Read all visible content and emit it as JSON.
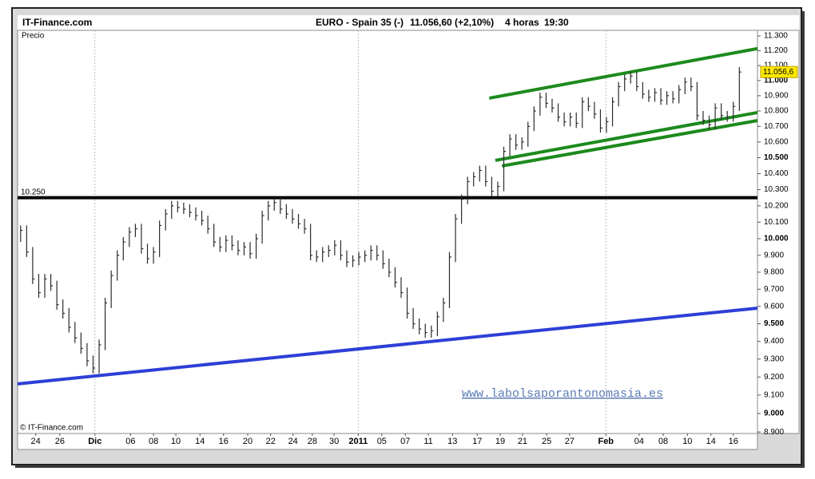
{
  "chart_data": {
    "type": "hlc",
    "site": "IT-Finance.com",
    "title": "EURO - Spain 35 (-)",
    "quote": "11.056,60 (+2,10%)",
    "period": "4 horas",
    "time": "19:30",
    "y_label": "Precio",
    "copyright": "© IT-Finance.com",
    "watermark": "www.labolsaporantonomasia.es",
    "last_value_label": "11.056,6",
    "color": "#2b2b2b",
    "log": true,
    "grid": false,
    "ylim": [
      8892,
      11338
    ],
    "yticks": [
      {
        "value": 8900,
        "label": "8.900"
      },
      {
        "value": 9000,
        "label": "9.000"
      },
      {
        "value": 9100,
        "label": "9.100"
      },
      {
        "value": 9200,
        "label": "9.200"
      },
      {
        "value": 9300,
        "label": "9.300"
      },
      {
        "value": 9400,
        "label": "9.400"
      },
      {
        "value": 9500,
        "label": "9.500"
      },
      {
        "value": 9600,
        "label": "9.600"
      },
      {
        "value": 9700,
        "label": "9.700"
      },
      {
        "value": 9800,
        "label": "9.800"
      },
      {
        "value": 9900,
        "label": "9.900"
      },
      {
        "value": 10000,
        "label": "10.000"
      },
      {
        "value": 10100,
        "label": "10.100"
      },
      {
        "value": 10200,
        "label": "10.200"
      },
      {
        "value": 10300,
        "label": "10.300"
      },
      {
        "value": 10400,
        "label": "10.400"
      },
      {
        "value": 10500,
        "label": "10.500"
      },
      {
        "value": 10600,
        "label": "10.600"
      },
      {
        "value": 10700,
        "label": "10.700"
      },
      {
        "value": 10800,
        "label": "10.800"
      },
      {
        "value": 10900,
        "label": "10.900"
      },
      {
        "value": 11000,
        "label": "11.000"
      },
      {
        "value": 11100,
        "label": "11.100"
      },
      {
        "value": 11200,
        "label": "11.200"
      },
      {
        "value": 11300,
        "label": "11.300"
      }
    ],
    "xlim": [
      -0.5,
      122
    ],
    "xticks": [
      {
        "value": 2.5,
        "label": "24"
      },
      {
        "value": 6.5,
        "label": "26"
      },
      {
        "value": 12.3,
        "label": "Dic"
      },
      {
        "value": 18.2,
        "label": "06"
      },
      {
        "value": 22,
        "label": "08"
      },
      {
        "value": 25.7,
        "label": "10"
      },
      {
        "value": 29.7,
        "label": "14"
      },
      {
        "value": 33.6,
        "label": "16"
      },
      {
        "value": 37.6,
        "label": "20"
      },
      {
        "value": 41.4,
        "label": "22"
      },
      {
        "value": 45.1,
        "label": "24"
      },
      {
        "value": 48.3,
        "label": "28"
      },
      {
        "value": 51.9,
        "label": "30"
      },
      {
        "value": 55.9,
        "label": "2011"
      },
      {
        "value": 59.8,
        "label": "05"
      },
      {
        "value": 63.7,
        "label": "07"
      },
      {
        "value": 67.5,
        "label": "11"
      },
      {
        "value": 71.5,
        "label": "13"
      },
      {
        "value": 75.6,
        "label": "17"
      },
      {
        "value": 79.4,
        "label": "19"
      },
      {
        "value": 83.1,
        "label": "21"
      },
      {
        "value": 87.1,
        "label": "25"
      },
      {
        "value": 90.9,
        "label": "27"
      },
      {
        "value": 96.9,
        "label": "Feb"
      },
      {
        "value": 102.4,
        "label": "04"
      },
      {
        "value": 106.4,
        "label": "08"
      },
      {
        "value": 110.4,
        "label": "10"
      },
      {
        "value": 114.3,
        "label": "14"
      },
      {
        "value": 118,
        "label": "16"
      }
    ],
    "xgrid": [
      12.3,
      55.9,
      96.9
    ],
    "high": [
      10080,
      10080,
      9950,
      9790,
      9790,
      9790,
      9750,
      9640,
      9590,
      9510,
      9450,
      9390,
      9320,
      9410,
      9650,
      9810,
      9930,
      10010,
      10070,
      10090,
      10090,
      9970,
      9950,
      10110,
      10180,
      10230,
      10230,
      10220,
      10210,
      10190,
      10170,
      10140,
      10090,
      10010,
      10020,
      10020,
      9990,
      9980,
      9980,
      10030,
      10170,
      10230,
      10250,
      10250,
      10210,
      10180,
      10150,
      10120,
      10090,
      9930,
      9950,
      9960,
      9990,
      9990,
      9930,
      9900,
      9920,
      9930,
      9960,
      9960,
      9930,
      9880,
      9830,
      9770,
      9710,
      9590,
      9530,
      9500,
      9490,
      9570,
      9650,
      9920,
      10150,
      10270,
      10380,
      10410,
      10450,
      10450,
      10380,
      10350,
      10570,
      10650,
      10650,
      10630,
      10730,
      10830,
      10920,
      10920,
      10880,
      10850,
      10790,
      10790,
      10790,
      10890,
      10890,
      10860,
      10810,
      10760,
      10890,
      10990,
      11040,
      11060,
      11060,
      10990,
      10940,
      10950,
      10950,
      10930,
      10930,
      10970,
      11020,
      11020,
      10990,
      10800,
      10770,
      10850,
      10850,
      10800,
      10860,
      11090
    ],
    "low": [
      9980,
      9890,
      9730,
      9650,
      9650,
      9690,
      9580,
      9530,
      9450,
      9390,
      9330,
      9260,
      9220,
      9220,
      9350,
      9590,
      9750,
      9870,
      9950,
      10010,
      9910,
      9850,
      9850,
      9890,
      10050,
      10120,
      10160,
      10150,
      10130,
      10110,
      10080,
      10030,
      9950,
      9920,
      9920,
      9930,
      9900,
      9900,
      9880,
      9880,
      9970,
      10110,
      10170,
      10150,
      10120,
      10090,
      10060,
      10030,
      9870,
      9860,
      9860,
      9890,
      9900,
      9870,
      9830,
      9830,
      9840,
      9860,
      9870,
      9870,
      9820,
      9770,
      9710,
      9650,
      9530,
      9470,
      9440,
      9420,
      9420,
      9430,
      9510,
      9590,
      9860,
      10090,
      10210,
      10320,
      10350,
      10320,
      10260,
      10260,
      10290,
      10510,
      10550,
      10550,
      10570,
      10670,
      10770,
      10820,
      10790,
      10730,
      10700,
      10700,
      10690,
      10690,
      10800,
      10750,
      10660,
      10660,
      10700,
      10830,
      10930,
      10980,
      10930,
      10880,
      10860,
      10860,
      10840,
      10840,
      10850,
      10850,
      10910,
      10930,
      10740,
      10710,
      10680,
      10680,
      10740,
      10730,
      10730,
      10800
    ],
    "close": [
      10050,
      9920,
      9760,
      9680,
      9760,
      9720,
      9610,
      9560,
      9480,
      9420,
      9360,
      9290,
      9250,
      9380,
      9620,
      9780,
      9900,
      9980,
      10040,
      10060,
      9940,
      9880,
      9920,
      10080,
      10150,
      10200,
      10190,
      10180,
      10160,
      10140,
      10110,
      10060,
      9980,
      9950,
      9990,
      9960,
      9930,
      9950,
      9910,
      10000,
      10140,
      10200,
      10220,
      10180,
      10150,
      10120,
      10090,
      10060,
      9900,
      9890,
      9920,
      9930,
      9960,
      9900,
      9860,
      9870,
      9890,
      9900,
      9930,
      9900,
      9850,
      9800,
      9740,
      9680,
      9560,
      9500,
      9470,
      9450,
      9460,
      9540,
      9620,
      9890,
      10120,
      10240,
      10350,
      10380,
      10420,
      10350,
      10290,
      10320,
      10540,
      10620,
      10580,
      10600,
      10700,
      10800,
      10890,
      10850,
      10820,
      10760,
      10730,
      10760,
      10720,
      10860,
      10830,
      10780,
      10690,
      10730,
      10860,
      10960,
      11010,
      11030,
      10960,
      10910,
      10890,
      10920,
      10870,
      10900,
      10880,
      10940,
      10990,
      10960,
      10770,
      10740,
      10710,
      10820,
      10770,
      10760,
      10830,
      11056.6
    ],
    "levels": [
      {
        "value": 10250,
        "label": "10.250",
        "color": "#000000"
      }
    ],
    "trendlines": [
      {
        "color": "#2d3fd6",
        "x": [
          -0.5,
          122
        ],
        "y": [
          9162,
          9590
        ]
      },
      {
        "color": "#1d8a1d",
        "x": [
          77.6,
          122
        ],
        "y": [
          10884,
          11214
        ]
      },
      {
        "color": "#1d8a1d",
        "x": [
          78.6,
          122
        ],
        "y": [
          10483,
          10790
        ]
      },
      {
        "color": "#1d8a1d",
        "x": [
          79.7,
          122
        ],
        "y": [
          10448,
          10738
        ]
      }
    ]
  }
}
